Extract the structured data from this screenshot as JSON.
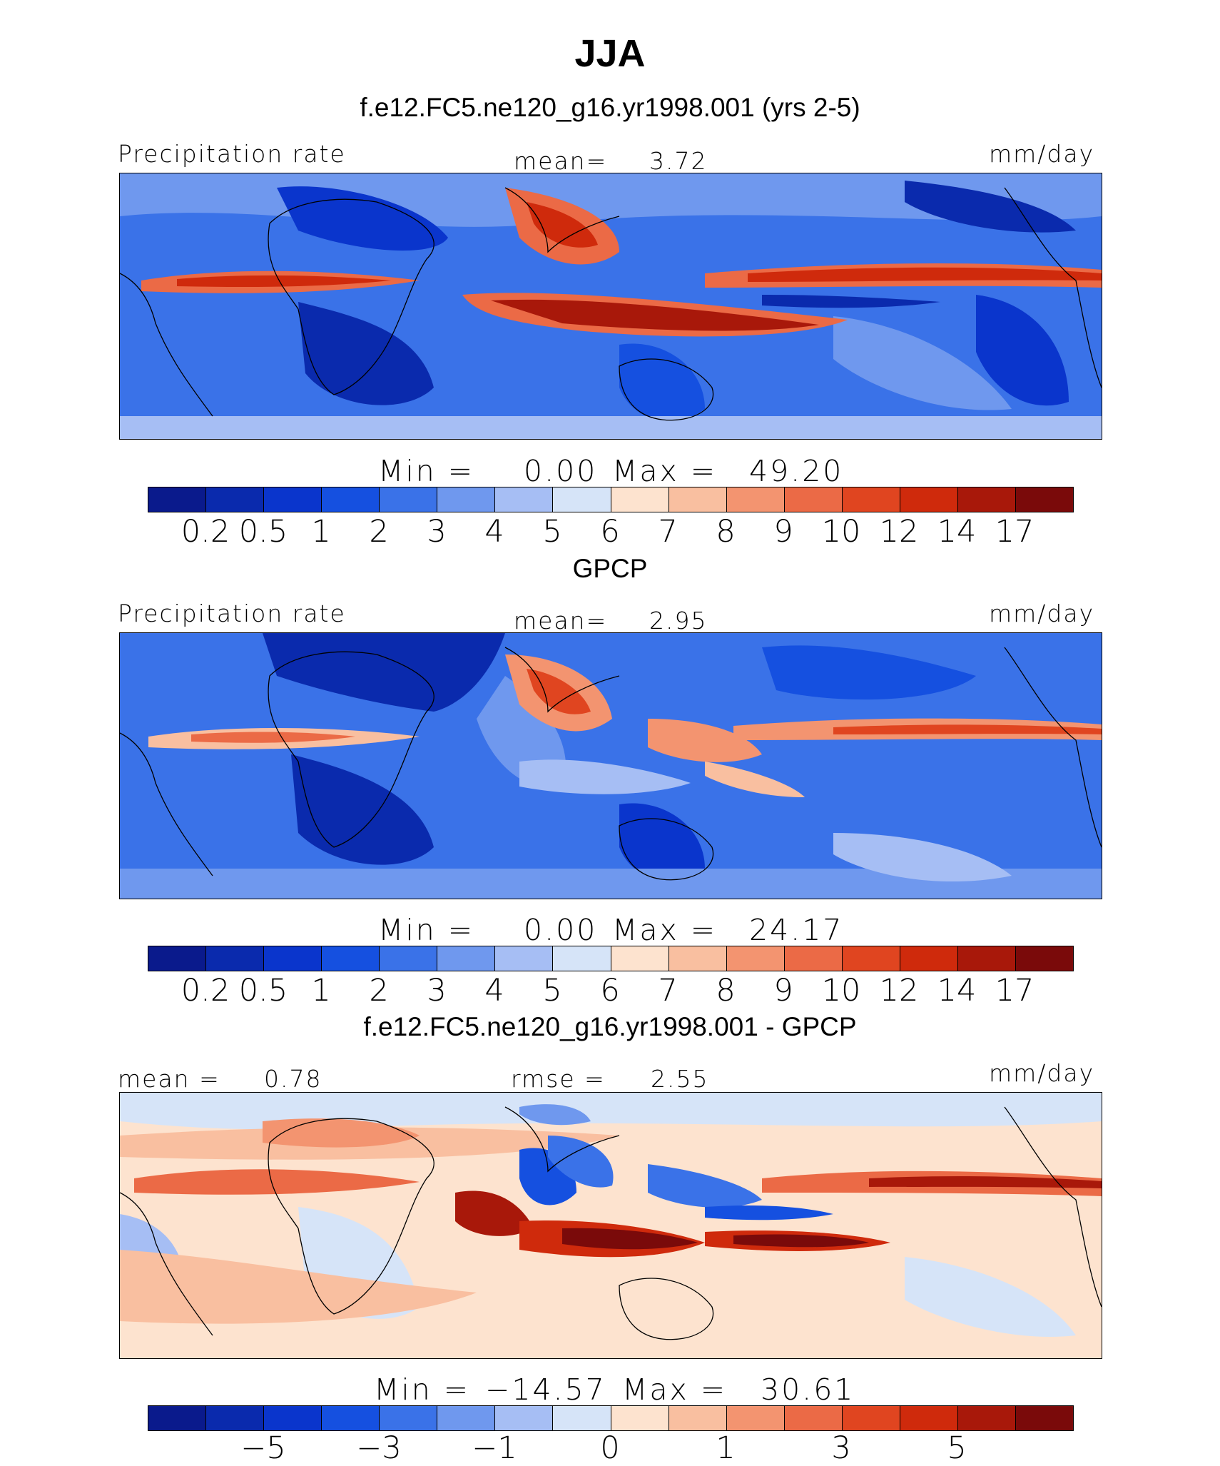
{
  "title": "JJA",
  "panels": [
    {
      "heading": "f.e12.FC5.ne120_g16.yr1998.001 (yrs 2-5)",
      "left_label": "Precipitation rate",
      "center_label": "mean=",
      "center_value": "3.72",
      "right_label": "mm/day",
      "min_label": "Min  =",
      "min_value": "0.00",
      "max_label": "Max  =",
      "max_value": "49.20",
      "colorbar_colors": [
        "#0a1a8c",
        "#0a2aad",
        "#0a35cc",
        "#1550e0",
        "#3a72e8",
        "#6f98ee",
        "#a6bef4",
        "#d6e4f8",
        "#fde3cf",
        "#f9bfa0",
        "#f39470",
        "#eb6a46",
        "#e04520",
        "#cf2a0c",
        "#a8180a",
        "#7a0a0a"
      ],
      "colorbar_ticks": [
        "0.2",
        "0.5",
        "1",
        "2",
        "3",
        "4",
        "5",
        "6",
        "7",
        "8",
        "9",
        "10",
        "12",
        "14",
        "17"
      ]
    },
    {
      "heading": "GPCP",
      "left_label": "Precipitation rate",
      "center_label": "mean=",
      "center_value": "2.95",
      "right_label": "mm/day",
      "min_label": "Min  =",
      "min_value": "0.00",
      "max_label": "Max  =",
      "max_value": "24.17",
      "colorbar_colors": [
        "#0a1a8c",
        "#0a2aad",
        "#0a35cc",
        "#1550e0",
        "#3a72e8",
        "#6f98ee",
        "#a6bef4",
        "#d6e4f8",
        "#fde3cf",
        "#f9bfa0",
        "#f39470",
        "#eb6a46",
        "#e04520",
        "#cf2a0c",
        "#a8180a",
        "#7a0a0a"
      ],
      "colorbar_ticks": [
        "0.2",
        "0.5",
        "1",
        "2",
        "3",
        "4",
        "5",
        "6",
        "7",
        "8",
        "9",
        "10",
        "12",
        "14",
        "17"
      ]
    },
    {
      "heading": "f.e12.FC5.ne120_g16.yr1998.001 - GPCP",
      "left_label": "mean =",
      "left_value": "0.78",
      "center_label": "rmse =",
      "center_value": "2.55",
      "right_label": "mm/day",
      "min_label": "Min  =",
      "min_value": "−14.57",
      "max_label": "Max  =",
      "max_value": "30.61",
      "colorbar_colors": [
        "#0a1a8c",
        "#0a2aad",
        "#0a35cc",
        "#1550e0",
        "#3a72e8",
        "#6f98ee",
        "#a6bef4",
        "#d6e4f8",
        "#fde3cf",
        "#f9bfa0",
        "#f39470",
        "#eb6a46",
        "#e04520",
        "#cf2a0c",
        "#a8180a",
        "#7a0a0a"
      ],
      "colorbar_ticks": [
        "−5",
        "−3",
        "−1",
        "0",
        "1",
        "3",
        "5"
      ]
    }
  ]
}
